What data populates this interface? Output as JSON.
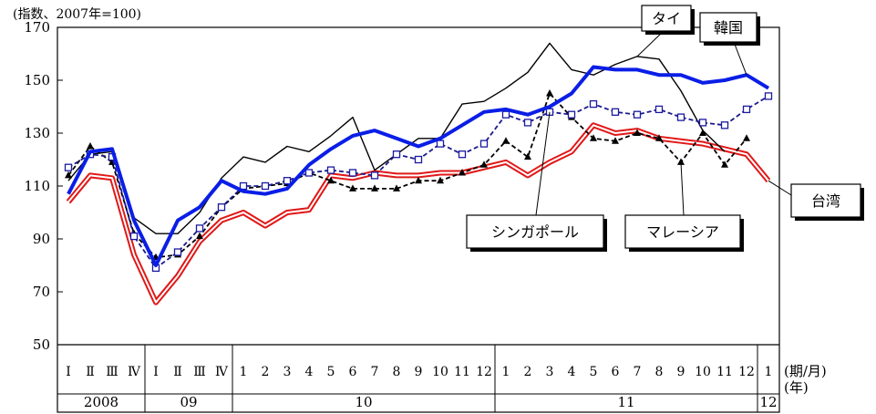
{
  "chart_data": {
    "type": "line",
    "unit_label": "(指数、2007年=100)",
    "y_ticks": [
      50,
      70,
      90,
      110,
      130,
      150,
      170
    ],
    "ylim": [
      50,
      170
    ],
    "x_labels": [
      "Ⅰ",
      "Ⅱ",
      "Ⅲ",
      "Ⅳ",
      "Ⅰ",
      "Ⅱ",
      "Ⅲ",
      "Ⅳ",
      "1",
      "2",
      "3",
      "4",
      "5",
      "6",
      "7",
      "8",
      "9",
      "10",
      "11",
      "12",
      "1",
      "2",
      "3",
      "4",
      "5",
      "6",
      "7",
      "8",
      "9",
      "10",
      "11",
      "12",
      "1"
    ],
    "year_labels": [
      {
        "label": "2008",
        "from": 0,
        "to": 4
      },
      {
        "label": "09",
        "from": 4,
        "to": 8
      },
      {
        "label": "10",
        "from": 8,
        "to": 20
      },
      {
        "label": "11",
        "from": 20,
        "to": 32
      },
      {
        "label": "12",
        "from": 32,
        "to": 33
      }
    ],
    "x_axis_label_period": "(期/月)",
    "x_axis_label_year": "(年)",
    "series": [
      {
        "name": "タイ",
        "color": "#000000",
        "style": "thin-solid",
        "values": [
          112,
          122,
          123,
          98,
          92,
          92,
          100,
          113,
          121,
          119,
          125,
          123,
          129,
          136,
          116,
          122,
          128,
          128,
          141,
          142,
          147,
          153,
          164,
          154,
          152,
          156,
          159,
          158,
          146,
          131,
          123,
          null,
          null
        ]
      },
      {
        "name": "韓国",
        "color": "#0a1ee6",
        "style": "thick-solid",
        "values": [
          107,
          123,
          124,
          97,
          80,
          97,
          102,
          112,
          108,
          107,
          109,
          118,
          124,
          129,
          131,
          128,
          125,
          128,
          133,
          138,
          139,
          137,
          140,
          145,
          155,
          154,
          154,
          152,
          152,
          149,
          150,
          152,
          147
        ]
      },
      {
        "name": "シンガポール",
        "color": "#1a1a8c",
        "style": "dashed-square",
        "values": [
          117,
          122,
          121,
          91,
          79,
          85,
          94,
          102,
          110,
          110,
          112,
          115,
          116,
          115,
          114,
          122,
          120,
          126,
          122,
          126,
          137,
          134,
          138,
          137,
          141,
          138,
          137,
          139,
          136,
          134,
          133,
          139,
          144
        ]
      },
      {
        "name": "マレーシア",
        "color": "#000000",
        "style": "dashed-triangle",
        "values": [
          114,
          125,
          119,
          92,
          83,
          84,
          91,
          102,
          109,
          110,
          111,
          115,
          112,
          109,
          109,
          109,
          112,
          112,
          115,
          118,
          127,
          121,
          145,
          136,
          128,
          127,
          130,
          128,
          119,
          130,
          118,
          128,
          null
        ]
      },
      {
        "name": "台湾",
        "color": "#e01818",
        "style": "double-line",
        "values": [
          104,
          114,
          113,
          84,
          66,
          76,
          89,
          97,
          100,
          95,
          100,
          101,
          114,
          113,
          115,
          114,
          114,
          115,
          115,
          117,
          119,
          114,
          119,
          123,
          133,
          130,
          131,
          128,
          127,
          126,
          124,
          122,
          112
        ]
      }
    ]
  }
}
